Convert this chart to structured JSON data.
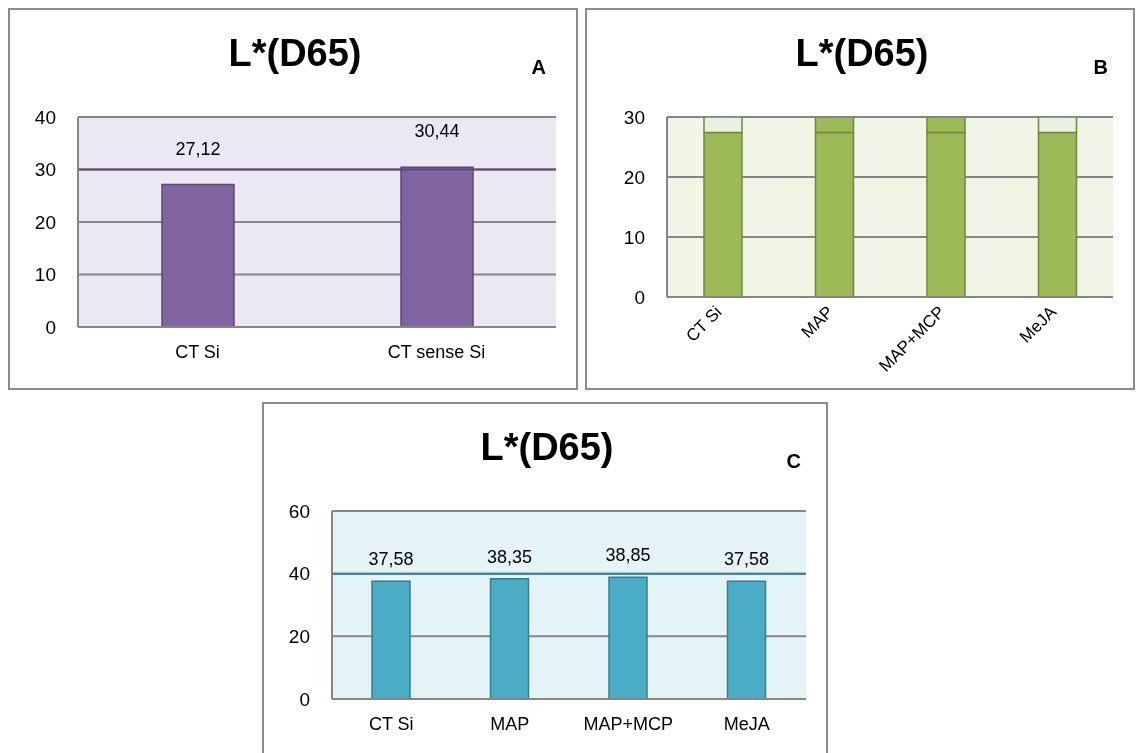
{
  "chart_data": [
    {
      "type": "bar",
      "title": "L*(D65)",
      "annotations": [
        "A"
      ],
      "categories": [
        "CT Si",
        "CT sense Si"
      ],
      "values": [
        27.12,
        30.44
      ],
      "value_labels": [
        "27,12",
        "30,44"
      ],
      "color": "#8064a2",
      "ylim": [
        0,
        40
      ],
      "yticks": [
        0,
        10,
        20,
        30,
        40
      ],
      "grid": "y",
      "ref_lines": [
        {
          "axis": "y",
          "value": 30,
          "color": "#60497a"
        }
      ]
    },
    {
      "type": "bar",
      "title": "L*(D65)",
      "annotations": [
        "B"
      ],
      "categories": [
        "CT Si",
        "MAP",
        "MAP+MCP",
        "MeJA"
      ],
      "stacked": true,
      "series": [
        {
          "color": "#9bbb59",
          "values": [
            27.4,
            27.4,
            27.4,
            27.4
          ]
        },
        {
          "color": "#9bbb59",
          "colors": [
            "#ebf1e0",
            "#9bbb59",
            "#9bbb59",
            "#ebf1e0"
          ],
          "values": [
            2.6,
            2.6,
            2.6,
            2.6
          ]
        }
      ],
      "ylim": [
        0,
        30
      ],
      "yticks": [
        0,
        10,
        20,
        30
      ],
      "grid": "y"
    },
    {
      "type": "bar",
      "title": "L*(D65)",
      "annotations": [
        "C"
      ],
      "categories": [
        "CT Si",
        "MAP",
        "MAP+MCP",
        "MeJA"
      ],
      "values": [
        37.58,
        38.35,
        38.85,
        37.58
      ],
      "value_labels": [
        "37,58",
        "38,35",
        "38,85",
        "37,58"
      ],
      "color": "#4bacc6",
      "ylim": [
        0,
        60
      ],
      "yticks": [
        0,
        20,
        40,
        60
      ],
      "grid": "y",
      "ref_lines": [
        {
          "axis": "y",
          "value": 40,
          "color": "#31859c"
        }
      ]
    }
  ]
}
